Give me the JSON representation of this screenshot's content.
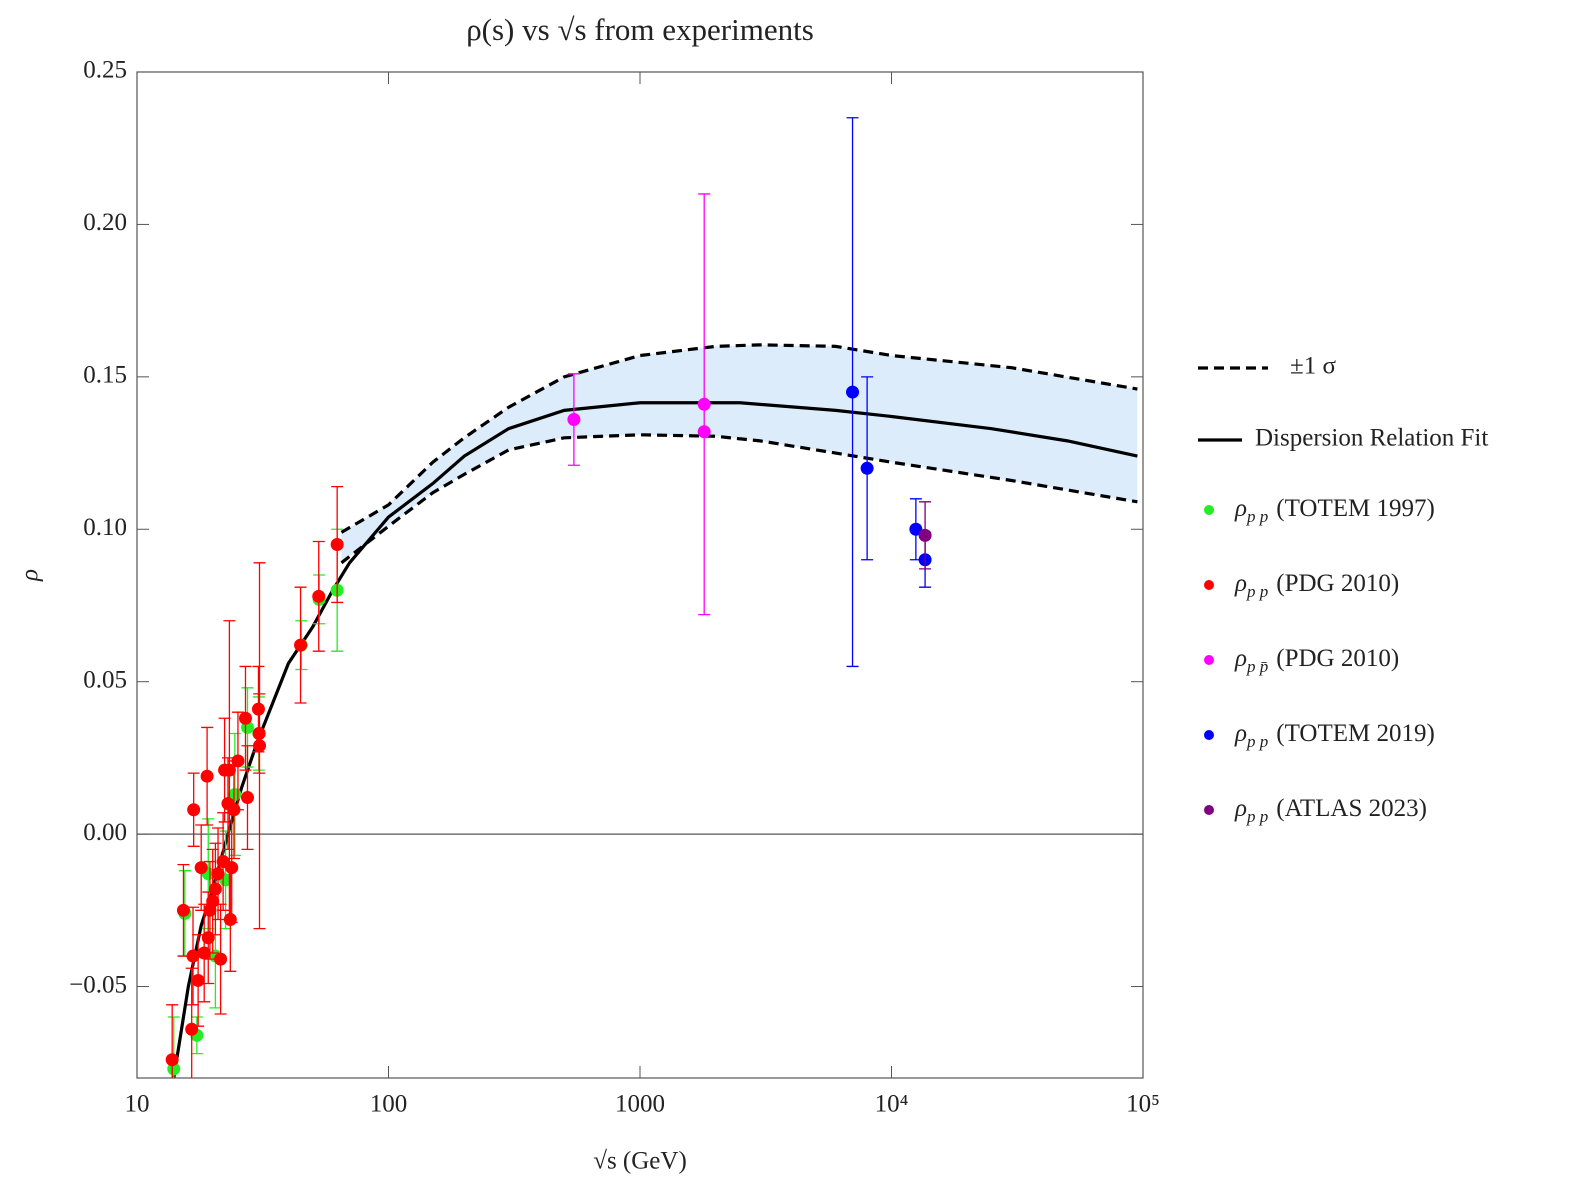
{
  "chart_data": {
    "type": "scatter",
    "title": "ρ(s) vs √s from experiments",
    "x_label": "√s (GeV)",
    "y_label": "ρ",
    "x_log": true,
    "xlim": [
      10,
      100000
    ],
    "ylim": [
      -0.08,
      0.25
    ],
    "xticks": [
      10,
      100,
      1000,
      {
        "value": 10000,
        "label": "10⁴"
      },
      {
        "value": 100000,
        "label": "10⁵"
      }
    ],
    "yticks": [
      {
        "value": -0.05,
        "label": "−0.05"
      },
      {
        "value": 0,
        "label": "0.00"
      },
      0.05,
      {
        "value": 0.1,
        "label": "0.10"
      },
      0.15,
      {
        "value": 0.2,
        "label": "0.20"
      },
      0.25
    ],
    "zero_line": true,
    "band": {
      "name": "±1 σ",
      "color": "#000000",
      "fill": "#dcecfb",
      "x": [
        65,
        100,
        150,
        200,
        300,
        500,
        1000,
        2000,
        3000,
        6000,
        10000,
        30000,
        95000
      ],
      "upper": [
        0.099,
        0.108,
        0.122,
        0.13,
        0.14,
        0.15,
        0.157,
        0.16,
        0.1605,
        0.16,
        0.157,
        0.153,
        0.146
      ],
      "lower": [
        0.089,
        0.101,
        0.112,
        0.118,
        0.126,
        0.13,
        0.131,
        0.1305,
        0.129,
        0.125,
        0.122,
        0.116,
        0.109
      ]
    },
    "fit": {
      "name": "Dispersion Relation Fit",
      "color": "#000000",
      "x": [
        14,
        16,
        18,
        20,
        23,
        26,
        30,
        40,
        50,
        60,
        70,
        100,
        150,
        200,
        300,
        500,
        1000,
        2500,
        6000,
        10000,
        25000,
        50000,
        95000
      ],
      "values": [
        -0.08,
        -0.05,
        -0.03,
        -0.018,
        0.0,
        0.015,
        0.03,
        0.056,
        0.068,
        0.08,
        0.089,
        0.104,
        0.115,
        0.124,
        0.133,
        0.139,
        0.1415,
        0.1415,
        0.139,
        0.137,
        0.133,
        0.129,
        0.124
      ]
    },
    "series": [
      {
        "symbol": "ρ",
        "subscript": "p p",
        "name": "(TOTEM 1997)",
        "color": "#22ee22",
        "x": [
          14.0,
          15.5,
          17.3,
          19.2,
          20.5,
          22.5,
          24.5,
          27.5,
          30.5,
          45,
          53,
          62.5
        ],
        "values": [
          -0.077,
          -0.026,
          -0.066,
          -0.013,
          -0.04,
          -0.015,
          0.013,
          0.035,
          0.033,
          0.062,
          0.077,
          0.08
        ],
        "errors": [
          0.017,
          0.014,
          0.006,
          0.018,
          0.017,
          0.016,
          0.02,
          0.013,
          0.012,
          0.008,
          0.008,
          0.02
        ]
      },
      {
        "symbol": "ρ",
        "subscript": "p p",
        "name": "(PDG 2010)",
        "color": "#ff0000",
        "x": [
          13.8,
          15.3,
          16.5,
          16.7,
          16.8,
          17.5,
          18.0,
          18.5,
          19.0,
          19.2,
          19.5,
          20.0,
          20.5,
          21.0,
          21.5,
          22.0,
          22.3,
          23.0,
          23.3,
          23.5,
          23.8,
          24.3,
          25.2,
          27.0,
          27.5,
          30.4,
          30.6,
          30.7,
          44.7,
          52.8,
          62.5
        ],
        "values": [
          -0.074,
          -0.025,
          -0.064,
          -0.04,
          0.008,
          -0.048,
          -0.011,
          -0.039,
          0.019,
          -0.034,
          -0.025,
          -0.022,
          -0.018,
          -0.013,
          -0.041,
          -0.009,
          0.021,
          0.01,
          0.021,
          -0.028,
          -0.011,
          0.008,
          0.024,
          0.038,
          0.012,
          0.041,
          0.033,
          0.029,
          0.062,
          0.078,
          0.095
        ],
        "errors": [
          0.018,
          0.015,
          0.02,
          0.016,
          0.012,
          0.015,
          0.014,
          0.016,
          0.016,
          0.015,
          0.016,
          0.017,
          0.015,
          0.015,
          0.018,
          0.016,
          0.017,
          0.015,
          0.049,
          0.017,
          0.018,
          0.016,
          0.016,
          0.017,
          0.017,
          0.014,
          0.013,
          0.06,
          0.019,
          0.018,
          0.019
        ]
      },
      {
        "symbol": "ρ",
        "subscript": "p p̄",
        "name": "(PDG 2010)",
        "color": "#ff00ff",
        "x": [
          546,
          1800,
          1800
        ],
        "values": [
          0.136,
          0.141,
          0.132
        ],
        "errors": [
          0.015,
          0.069,
          null
        ]
      },
      {
        "symbol": "ρ",
        "subscript": "p p",
        "name": "(TOTEM 2019)",
        "color": "#0000ff",
        "x": [
          7000,
          8000,
          12500,
          13600
        ],
        "values": [
          0.145,
          0.12,
          0.1,
          0.09
        ],
        "errors": [
          0.09,
          0.03,
          0.01,
          0.009
        ]
      },
      {
        "symbol": "ρ",
        "subscript": "p p",
        "name": "(ATLAS 2023)",
        "color": "#800080",
        "x": [
          13600
        ],
        "values": [
          0.098
        ],
        "errors": [
          0.011
        ]
      }
    ]
  }
}
